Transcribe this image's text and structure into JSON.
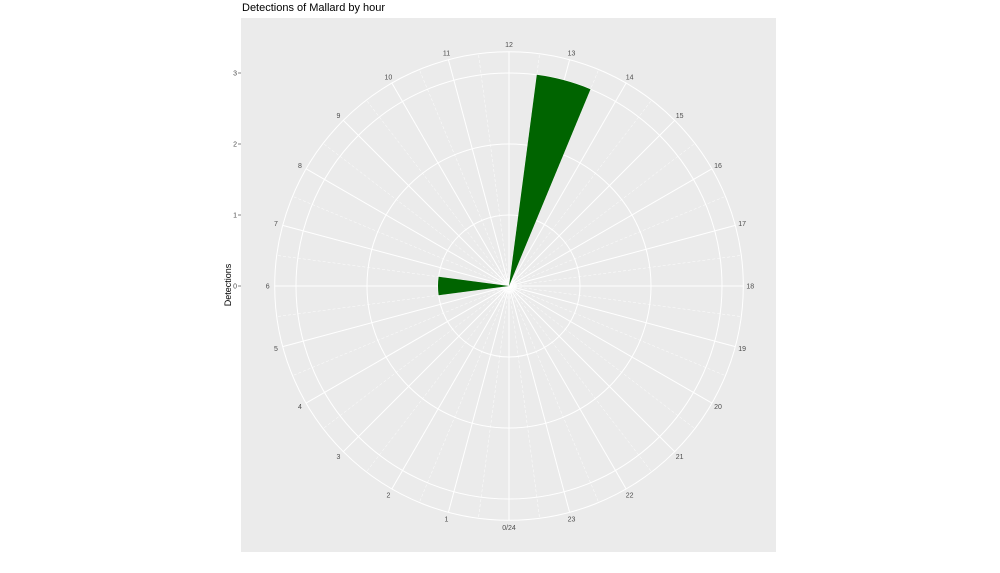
{
  "chart_data": {
    "type": "bar",
    "coord": "polar",
    "title": "Detections of Mallard by hour",
    "xlabel": "",
    "ylabel": "Detections",
    "categories": [
      0,
      1,
      2,
      3,
      4,
      5,
      6,
      7,
      8,
      9,
      10,
      11,
      12,
      13,
      14,
      15,
      16,
      17,
      18,
      19,
      20,
      21,
      22,
      23
    ],
    "values": [
      0,
      0,
      0,
      0,
      0,
      0,
      1,
      0,
      0,
      0,
      0,
      0,
      0,
      3,
      0,
      0,
      0,
      0,
      0,
      0,
      0,
      0,
      0,
      0
    ],
    "hour_labels": [
      "0/24",
      "1",
      "2",
      "3",
      "4",
      "5",
      "6",
      "7",
      "8",
      "9",
      "10",
      "11",
      "12",
      "13",
      "14",
      "15",
      "16",
      "17",
      "18",
      "19",
      "20",
      "21",
      "22",
      "23"
    ],
    "yticks": [
      "0",
      "1",
      "2",
      "3"
    ],
    "ylim": [
      0,
      3
    ],
    "bar_color": "#006400",
    "panel_color": "#ebebeb",
    "grid": true
  }
}
